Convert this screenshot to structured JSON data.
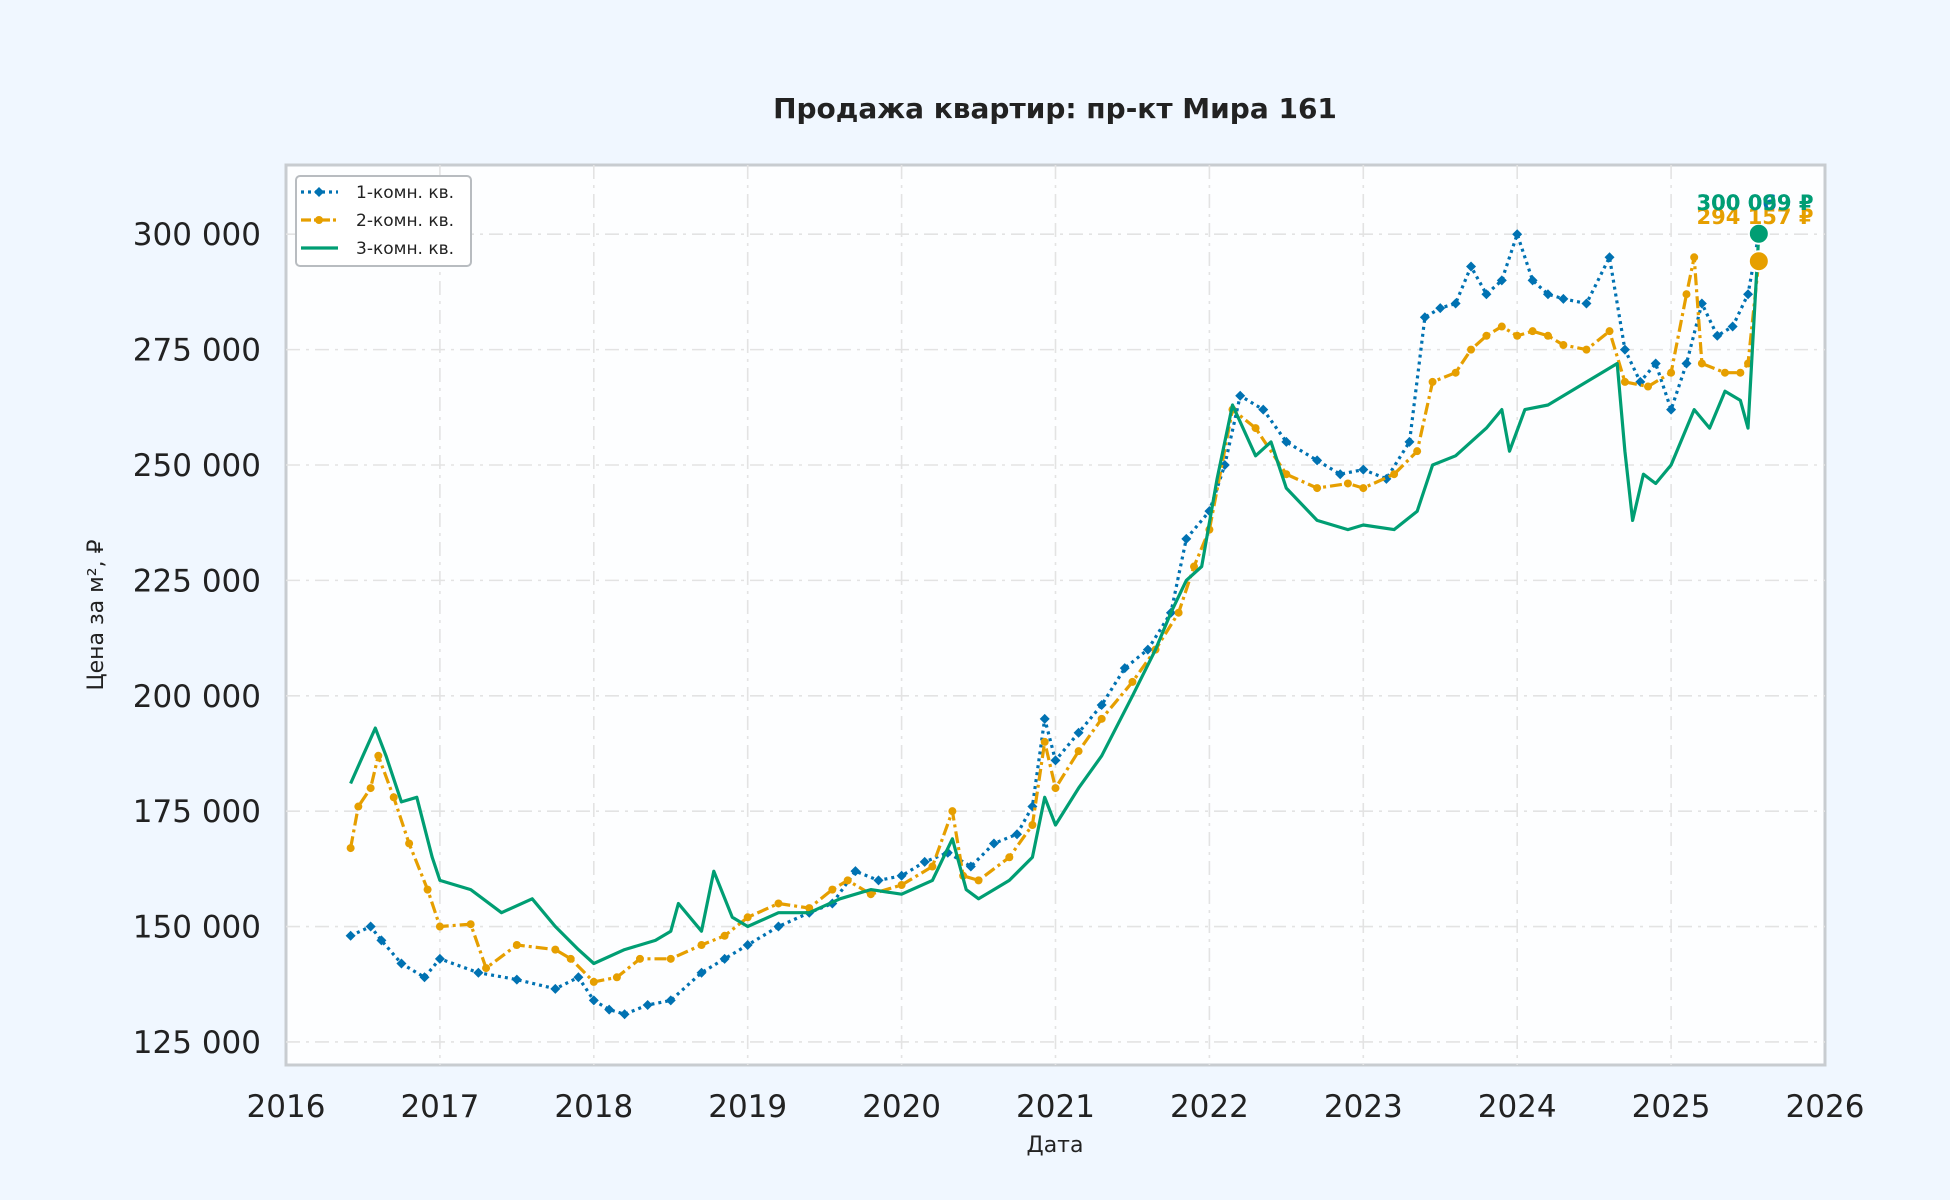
{
  "chart_data": {
    "type": "line",
    "title": "Продажа квартир: пр-кт Мира 161",
    "xlabel": "Дата",
    "ylabel": "Цена за м², ₽",
    "xlim": [
      2016.0,
      2026.0
    ],
    "ylim": [
      120000,
      315000
    ],
    "x_ticks": [
      "2016",
      "2017",
      "2018",
      "2019",
      "2020",
      "2021",
      "2022",
      "2023",
      "2024",
      "2025",
      "2026"
    ],
    "y_ticks": [
      {
        "value": 125000,
        "label": "125 000"
      },
      {
        "value": 150000,
        "label": "150 000"
      },
      {
        "value": 175000,
        "label": "175 000"
      },
      {
        "value": 200000,
        "label": "200 000"
      },
      {
        "value": 225000,
        "label": "225 000"
      },
      {
        "value": 250000,
        "label": "250 000"
      },
      {
        "value": 275000,
        "label": "275 000"
      },
      {
        "value": 300000,
        "label": "300 000"
      }
    ],
    "grid": true,
    "legend_position": "top-left",
    "series": [
      {
        "name": "1-комн. кв.",
        "color": "#0072b2",
        "style": "dotted-diamond",
        "x": [
          2016.42,
          2016.55,
          2016.62,
          2016.75,
          2016.9,
          2017.0,
          2017.25,
          2017.5,
          2017.75,
          2017.9,
          2018.0,
          2018.1,
          2018.2,
          2018.35,
          2018.5,
          2018.7,
          2018.85,
          2019.0,
          2019.2,
          2019.4,
          2019.55,
          2019.7,
          2019.85,
          2020.0,
          2020.15,
          2020.3,
          2020.45,
          2020.6,
          2020.75,
          2020.85,
          2020.93,
          2021.0,
          2021.15,
          2021.3,
          2021.45,
          2021.6,
          2021.75,
          2021.85,
          2022.0,
          2022.1,
          2022.2,
          2022.35,
          2022.5,
          2022.7,
          2022.85,
          2023.0,
          2023.15,
          2023.3,
          2023.4,
          2023.5,
          2023.6,
          2023.7,
          2023.8,
          2023.9,
          2024.0,
          2024.1,
          2024.2,
          2024.3,
          2024.45,
          2024.6,
          2024.7,
          2024.8,
          2024.9,
          2025.0,
          2025.1,
          2025.2,
          2025.3,
          2025.4,
          2025.5,
          2025.57
        ],
        "values": [
          148000,
          150000,
          147000,
          142000,
          139000,
          143000,
          140000,
          138500,
          136500,
          139000,
          134000,
          132000,
          131000,
          133000,
          134000,
          140000,
          143000,
          146000,
          150000,
          153000,
          155000,
          162000,
          160000,
          161000,
          164000,
          166000,
          163000,
          168000,
          170000,
          176000,
          195000,
          186000,
          192000,
          198000,
          206000,
          210000,
          218000,
          234000,
          240000,
          250000,
          265000,
          262000,
          255000,
          251000,
          248000,
          249000,
          247000,
          255000,
          282000,
          284000,
          285000,
          293000,
          287000,
          290000,
          300000,
          290000,
          287000,
          286000,
          285000,
          295000,
          275000,
          268000,
          272000,
          262000,
          272000,
          285000,
          278000,
          280000,
          287000,
          300069
        ]
      },
      {
        "name": "2-комн. кв.",
        "color": "#e69f00",
        "style": "dashdot-dot",
        "x": [
          2016.42,
          2016.47,
          2016.55,
          2016.6,
          2016.7,
          2016.8,
          2016.92,
          2017.0,
          2017.2,
          2017.3,
          2017.5,
          2017.75,
          2017.85,
          2018.0,
          2018.15,
          2018.3,
          2018.5,
          2018.7,
          2018.85,
          2019.0,
          2019.2,
          2019.4,
          2019.55,
          2019.65,
          2019.8,
          2020.0,
          2020.2,
          2020.33,
          2020.4,
          2020.5,
          2020.7,
          2020.85,
          2020.93,
          2021.0,
          2021.15,
          2021.3,
          2021.5,
          2021.65,
          2021.8,
          2021.9,
          2022.0,
          2022.15,
          2022.3,
          2022.5,
          2022.7,
          2022.9,
          2023.0,
          2023.2,
          2023.35,
          2023.45,
          2023.6,
          2023.7,
          2023.8,
          2023.9,
          2024.0,
          2024.1,
          2024.2,
          2024.3,
          2024.45,
          2024.6,
          2024.7,
          2024.85,
          2025.0,
          2025.1,
          2025.15,
          2025.2,
          2025.35,
          2025.45,
          2025.5,
          2025.57
        ],
        "values": [
          167000,
          176000,
          180000,
          187000,
          178000,
          168000,
          158000,
          150000,
          150500,
          141000,
          146000,
          145000,
          143000,
          138000,
          139000,
          143000,
          143000,
          146000,
          148000,
          152000,
          155000,
          154000,
          158000,
          160000,
          157000,
          159000,
          163000,
          175000,
          161000,
          160000,
          165000,
          172000,
          190000,
          180000,
          188000,
          195000,
          203000,
          210000,
          218000,
          228000,
          236000,
          262000,
          258000,
          248000,
          245000,
          246000,
          245000,
          248000,
          253000,
          268000,
          270000,
          275000,
          278000,
          280000,
          278000,
          279000,
          278000,
          276000,
          275000,
          279000,
          268000,
          267000,
          270000,
          287000,
          295000,
          272000,
          270000,
          270000,
          272000,
          294157
        ]
      },
      {
        "name": "3-комн. кв.",
        "color": "#009e73",
        "style": "solid",
        "x": [
          2016.42,
          2016.5,
          2016.58,
          2016.65,
          2016.75,
          2016.85,
          2016.95,
          2017.0,
          2017.2,
          2017.4,
          2017.6,
          2017.75,
          2017.9,
          2018.0,
          2018.2,
          2018.4,
          2018.5,
          2018.55,
          2018.7,
          2018.78,
          2018.9,
          2019.0,
          2019.2,
          2019.4,
          2019.6,
          2019.8,
          2020.0,
          2020.2,
          2020.33,
          2020.42,
          2020.5,
          2020.7,
          2020.85,
          2020.93,
          2021.0,
          2021.15,
          2021.3,
          2021.5,
          2021.65,
          2021.75,
          2021.85,
          2021.95,
          2022.05,
          2022.15,
          2022.3,
          2022.4,
          2022.5,
          2022.7,
          2022.9,
          2023.0,
          2023.2,
          2023.35,
          2023.45,
          2023.6,
          2023.8,
          2023.9,
          2023.95,
          2024.05,
          2024.2,
          2024.4,
          2024.55,
          2024.65,
          2024.7,
          2024.75,
          2024.82,
          2024.9,
          2025.0,
          2025.15,
          2025.25,
          2025.35,
          2025.45,
          2025.5,
          2025.57
        ],
        "values": [
          181000,
          187000,
          193000,
          187000,
          177000,
          178000,
          165000,
          160000,
          158000,
          153000,
          156000,
          150000,
          145000,
          142000,
          145000,
          147000,
          149000,
          155000,
          149000,
          162000,
          152000,
          150000,
          153000,
          153000,
          156000,
          158000,
          157000,
          160000,
          169000,
          158000,
          156000,
          160000,
          165000,
          178000,
          172000,
          180000,
          187000,
          200000,
          210000,
          218000,
          225000,
          228000,
          247000,
          263000,
          252000,
          255000,
          245000,
          238000,
          236000,
          237000,
          236000,
          240000,
          250000,
          252000,
          258000,
          262000,
          253000,
          262000,
          263000,
          267000,
          270000,
          272000,
          253000,
          238000,
          248000,
          246000,
          250000,
          262000,
          258000,
          266000,
          264000,
          258000,
          300099
        ]
      }
    ],
    "end_labels": [
      {
        "series": "2-комн. кв.",
        "value": 294157,
        "text": "294 157 ₽",
        "color": "#e69f00"
      },
      {
        "series": "1-комн. кв.",
        "value": 300069,
        "text": "300 069 ₽",
        "color": "#0072b2"
      },
      {
        "series": "3-комн. кв.",
        "value": 300099,
        "text": "300 099 ₽",
        "color": "#009e73"
      }
    ]
  }
}
